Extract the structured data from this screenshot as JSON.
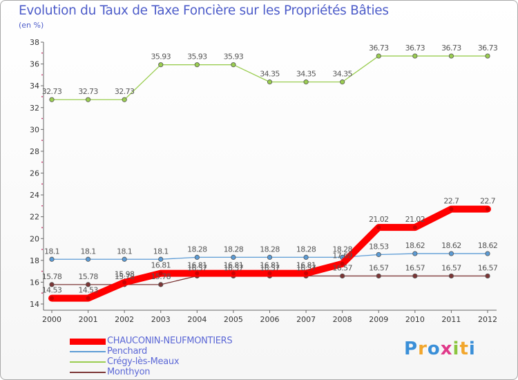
{
  "chart_data": {
    "type": "line",
    "title": "Evolution du Taux de Taxe Foncière sur les Propriétés Bâties",
    "ylabel": "(en %)",
    "xlabel": "",
    "categories": [
      "2000",
      "2001",
      "2002",
      "2003",
      "2004",
      "2005",
      "2006",
      "2007",
      "2008",
      "2009",
      "2010",
      "2011",
      "2012"
    ],
    "ylim": [
      14,
      38
    ],
    "yticks": [
      "14",
      "16",
      "18",
      "20",
      "22",
      "24",
      "26",
      "28",
      "30",
      "32",
      "34",
      "36",
      "38"
    ],
    "grid": false,
    "legend_position": "bottom-left",
    "series": [
      {
        "name": "CHAUCONIN-NEUFMONTIERS",
        "color": "#ff0000",
        "values": [
          14.53,
          14.53,
          15.98,
          16.81,
          16.81,
          16.81,
          16.81,
          16.81,
          17.69,
          21.02,
          21.02,
          22.7,
          22.7
        ],
        "labels": [
          "14.53",
          "14.53",
          "15.98",
          "16.81",
          "16.81",
          "16.81",
          "16.81",
          "16.81",
          "17.69",
          "21.02",
          "21.02",
          "22.7",
          "22.7"
        ]
      },
      {
        "name": "Penchard",
        "color": "#5b9bd5",
        "values": [
          18.1,
          18.1,
          18.1,
          18.1,
          18.28,
          18.28,
          18.28,
          18.28,
          18.28,
          18.53,
          18.62,
          18.62,
          18.62
        ],
        "labels": [
          "18.1",
          "18.1",
          "18.1",
          "18.1",
          "18.28",
          "18.28",
          "18.28",
          "18.28",
          "18.28",
          "18.53",
          "18.62",
          "18.62",
          "18.62"
        ]
      },
      {
        "name": "Crégy-lès-Meaux",
        "color": "#9acd50",
        "values": [
          32.73,
          32.73,
          32.73,
          35.93,
          35.93,
          35.93,
          34.35,
          34.35,
          34.35,
          36.73,
          36.73,
          36.73,
          36.73
        ],
        "labels": [
          "32.73",
          "32.73",
          "32.73",
          "35.93",
          "35.93",
          "35.93",
          "34.35",
          "34.35",
          "34.35",
          "36.73",
          "36.73",
          "36.73",
          "36.73"
        ]
      },
      {
        "name": "Monthyon",
        "color": "#7b3535",
        "values": [
          15.78,
          15.78,
          15.78,
          15.78,
          16.57,
          16.57,
          16.57,
          16.57,
          16.57,
          16.57,
          16.57,
          16.57,
          16.57
        ],
        "labels": [
          "15.78",
          "15.78",
          "15.78",
          "15.78",
          "16.57",
          "16.57",
          "16.57",
          "16.57",
          "16.57",
          "16.57",
          "16.57",
          "16.57",
          "16.57"
        ]
      }
    ]
  },
  "logo": {
    "letters": [
      "P",
      "r",
      "o",
      "x",
      "i",
      "t",
      "i"
    ],
    "colors": [
      "#3a8fd8",
      "#f2a62c",
      "#3a8fd8",
      "#e03a8a",
      "#8bc53f",
      "#f2a62c",
      "#3a8fd8"
    ]
  }
}
